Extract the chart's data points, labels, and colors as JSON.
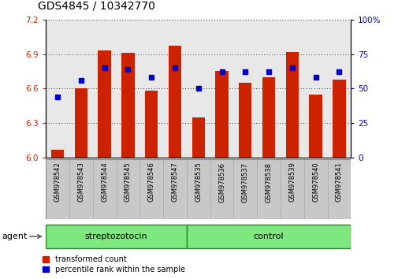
{
  "title": "GDS4845 / 10342770",
  "samples": [
    "GSM978542",
    "GSM978543",
    "GSM978544",
    "GSM978545",
    "GSM978546",
    "GSM978547",
    "GSM978535",
    "GSM978536",
    "GSM978537",
    "GSM978538",
    "GSM978539",
    "GSM978540",
    "GSM978541"
  ],
  "red_values": [
    6.07,
    6.6,
    6.93,
    6.91,
    6.58,
    6.97,
    6.35,
    6.75,
    6.65,
    6.7,
    6.92,
    6.55,
    6.68
  ],
  "blue_values": [
    44,
    56,
    65,
    64,
    58,
    65,
    50,
    62,
    62,
    62,
    65,
    58,
    62
  ],
  "ylim_left": [
    6.0,
    7.2
  ],
  "ylim_right": [
    0,
    100
  ],
  "yticks_left": [
    6.0,
    6.3,
    6.6,
    6.9,
    7.2
  ],
  "yticks_right": [
    0,
    25,
    50,
    75,
    100
  ],
  "groups": [
    {
      "label": "streptozotocin",
      "start": 0,
      "end": 6
    },
    {
      "label": "control",
      "start": 6,
      "end": 13
    }
  ],
  "bar_color": "#CC2200",
  "dot_color": "#0000CC",
  "baseline": 6.0,
  "bar_width": 0.55,
  "background_color": "#ffffff",
  "plot_bg": "#e8e8e8",
  "tick_label_bg": "#c8c8c8",
  "group_color": "#7EE87E",
  "group_border": "#228B22",
  "legend_red": "transformed count",
  "legend_blue": "percentile rank within the sample",
  "xlabel_group": "agent",
  "title_fontsize": 10,
  "tick_fontsize": 7.5,
  "sample_fontsize": 6.0,
  "group_fontsize": 8.0
}
